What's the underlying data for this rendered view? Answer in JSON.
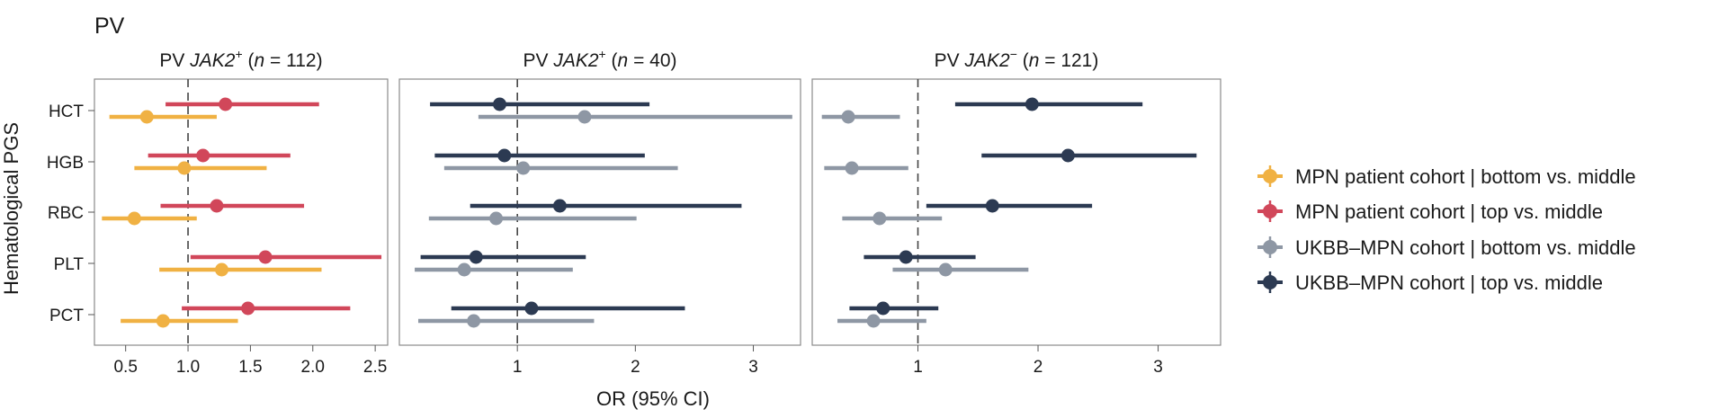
{
  "figure_label": "PV",
  "y_axis_label": "Hematological PGS",
  "x_axis_label": "OR (95% CI)",
  "colors": {
    "mpn_bottom": "#f0b143",
    "mpn_top": "#d1475a",
    "ukbb_bottom": "#8e97a4",
    "ukbb_top": "#2c3a52"
  },
  "legend": [
    {
      "key": "mpn_bottom",
      "label": "MPN patient cohort | bottom vs. middle"
    },
    {
      "key": "mpn_top",
      "label": "MPN patient cohort | top vs. middle"
    },
    {
      "key": "ukbb_bottom",
      "label": "UKBB–MPN cohort | bottom vs. middle"
    },
    {
      "key": "ukbb_top",
      "label": "UKBB–MPN cohort | top vs. middle"
    }
  ],
  "chart_data": [
    {
      "type": "forest",
      "title_prefix": "PV ",
      "title_gene": "JAK2",
      "title_sup": "+",
      "title_n_prefix": " (",
      "title_n_var": "n",
      "title_n_value": " = 112)",
      "categories": [
        "HCT",
        "HGB",
        "RBC",
        "PLT",
        "PCT"
      ],
      "xlim": [
        0.25,
        2.6
      ],
      "xticks": [
        0.5,
        1.0,
        1.5,
        2.0,
        2.5
      ],
      "xtick_labels": [
        "0.5",
        "1.0",
        "1.5",
        "2.0",
        "2.5"
      ],
      "reference_line": 1.0,
      "series": [
        {
          "key": "mpn_top",
          "values": [
            {
              "category": "HCT",
              "or": 1.3,
              "lo": 0.82,
              "hi": 2.05
            },
            {
              "category": "HGB",
              "or": 1.12,
              "lo": 0.68,
              "hi": 1.82
            },
            {
              "category": "RBC",
              "or": 1.23,
              "lo": 0.78,
              "hi": 1.93
            },
            {
              "category": "PLT",
              "or": 1.62,
              "lo": 1.02,
              "hi": 2.55
            },
            {
              "category": "PCT",
              "or": 1.48,
              "lo": 0.95,
              "hi": 2.3
            }
          ]
        },
        {
          "key": "mpn_bottom",
          "values": [
            {
              "category": "HCT",
              "or": 0.67,
              "lo": 0.37,
              "hi": 1.23
            },
            {
              "category": "HGB",
              "or": 0.97,
              "lo": 0.57,
              "hi": 1.63
            },
            {
              "category": "RBC",
              "or": 0.57,
              "lo": 0.31,
              "hi": 1.07
            },
            {
              "category": "PLT",
              "or": 1.27,
              "lo": 0.77,
              "hi": 2.07
            },
            {
              "category": "PCT",
              "or": 0.8,
              "lo": 0.46,
              "hi": 1.4
            }
          ]
        }
      ]
    },
    {
      "type": "forest",
      "title_prefix": "PV ",
      "title_gene": "JAK2",
      "title_sup": "+",
      "title_n_prefix": " (",
      "title_n_var": "n",
      "title_n_value": " = 40)",
      "categories": [
        "HCT",
        "HGB",
        "RBC",
        "PLT",
        "PCT"
      ],
      "xlim": [
        0.0,
        3.4
      ],
      "xticks": [
        1,
        2,
        3
      ],
      "xtick_labels": [
        "1",
        "2",
        "3"
      ],
      "reference_line": 1.0,
      "series": [
        {
          "key": "ukbb_top",
          "values": [
            {
              "category": "HCT",
              "or": 0.85,
              "lo": 0.26,
              "hi": 2.12
            },
            {
              "category": "HGB",
              "or": 0.89,
              "lo": 0.3,
              "hi": 2.08
            },
            {
              "category": "RBC",
              "or": 1.36,
              "lo": 0.6,
              "hi": 2.9
            },
            {
              "category": "PLT",
              "or": 0.65,
              "lo": 0.18,
              "hi": 1.58
            },
            {
              "category": "PCT",
              "or": 1.12,
              "lo": 0.44,
              "hi": 2.42
            }
          ]
        },
        {
          "key": "ukbb_bottom",
          "values": [
            {
              "category": "HCT",
              "or": 1.57,
              "lo": 0.67,
              "hi": 3.33
            },
            {
              "category": "HGB",
              "or": 1.05,
              "lo": 0.38,
              "hi": 2.36
            },
            {
              "category": "RBC",
              "or": 0.82,
              "lo": 0.25,
              "hi": 2.01
            },
            {
              "category": "PLT",
              "or": 0.55,
              "lo": 0.13,
              "hi": 1.47
            },
            {
              "category": "PCT",
              "or": 0.63,
              "lo": 0.16,
              "hi": 1.65
            }
          ]
        }
      ]
    },
    {
      "type": "forest",
      "title_prefix": "PV ",
      "title_gene": "JAK2",
      "title_sup": "−",
      "title_n_prefix": " (",
      "title_n_var": "n",
      "title_n_value": " = 121)",
      "categories": [
        "HCT",
        "HGB",
        "RBC",
        "PLT",
        "PCT"
      ],
      "xlim": [
        0.12,
        3.52
      ],
      "xticks": [
        1,
        2,
        3
      ],
      "xtick_labels": [
        "1",
        "2",
        "3"
      ],
      "reference_line": 1.0,
      "series": [
        {
          "key": "ukbb_top",
          "values": [
            {
              "category": "HCT",
              "or": 1.95,
              "lo": 1.31,
              "hi": 2.87
            },
            {
              "category": "HGB",
              "or": 2.25,
              "lo": 1.53,
              "hi": 3.32
            },
            {
              "category": "RBC",
              "or": 1.62,
              "lo": 1.07,
              "hi": 2.45
            },
            {
              "category": "PLT",
              "or": 0.9,
              "lo": 0.55,
              "hi": 1.48
            },
            {
              "category": "PCT",
              "or": 0.71,
              "lo": 0.43,
              "hi": 1.17
            }
          ]
        },
        {
          "key": "ukbb_bottom",
          "values": [
            {
              "category": "HCT",
              "or": 0.42,
              "lo": 0.2,
              "hi": 0.85
            },
            {
              "category": "HGB",
              "or": 0.45,
              "lo": 0.22,
              "hi": 0.92
            },
            {
              "category": "RBC",
              "or": 0.68,
              "lo": 0.37,
              "hi": 1.2
            },
            {
              "category": "PLT",
              "or": 1.23,
              "lo": 0.79,
              "hi": 1.92
            },
            {
              "category": "PCT",
              "or": 0.63,
              "lo": 0.33,
              "hi": 1.07
            }
          ]
        }
      ]
    }
  ]
}
